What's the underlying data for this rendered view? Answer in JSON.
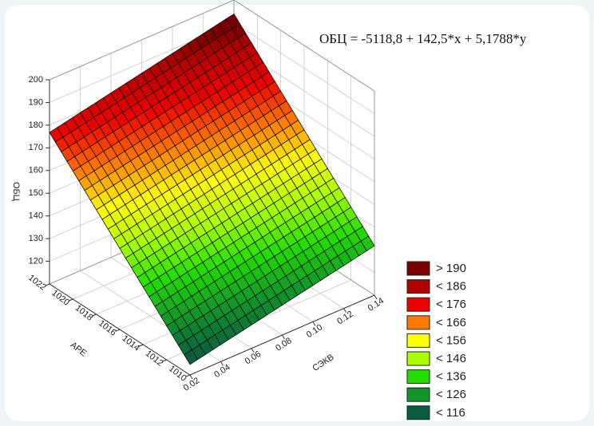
{
  "chart_data": {
    "type": "surface",
    "title": "ОБЦ = -5118,8 + 142,5*x + 5,1788*y",
    "equation": {
      "intercept": -5118.8,
      "x": 142.5,
      "y": 5.1788
    },
    "x_label": "СЭКВ",
    "y_label": "АРЕ",
    "z_label": "ОБЦ",
    "xlim": [
      0.02,
      0.14
    ],
    "xticks": [
      0.02,
      0.04,
      0.06,
      0.08,
      {
        "value": 0.1,
        "label": "0.10"
      },
      0.12,
      0.14
    ],
    "ylim": [
      1010,
      1022
    ],
    "yticks": [
      1010,
      1012,
      1014,
      1016,
      1018,
      1020,
      1022
    ],
    "zlim": [
      110,
      200
    ],
    "zticks": [
      120,
      130,
      140,
      150,
      160,
      170,
      180,
      190,
      200
    ],
    "grid": true,
    "levels": [
      {
        "value": 190,
        "label": "> 190",
        "color": "#7a0000"
      },
      {
        "value": 186,
        "label": "< 186",
        "color": "#b00000"
      },
      {
        "value": 176,
        "label": "< 176",
        "color": "#ee0000"
      },
      {
        "value": 166,
        "label": "< 166",
        "color": "#ff7a00"
      },
      {
        "value": 156,
        "label": "< 156",
        "color": "#ffff00"
      },
      {
        "value": 146,
        "label": "< 146",
        "color": "#a8ff00"
      },
      {
        "value": 136,
        "label": "< 136",
        "color": "#22dd00"
      },
      {
        "value": 126,
        "label": "< 126",
        "color": "#11952a"
      },
      {
        "value": 116,
        "label": "< 116",
        "color": "#0a5c40"
      }
    ]
  }
}
